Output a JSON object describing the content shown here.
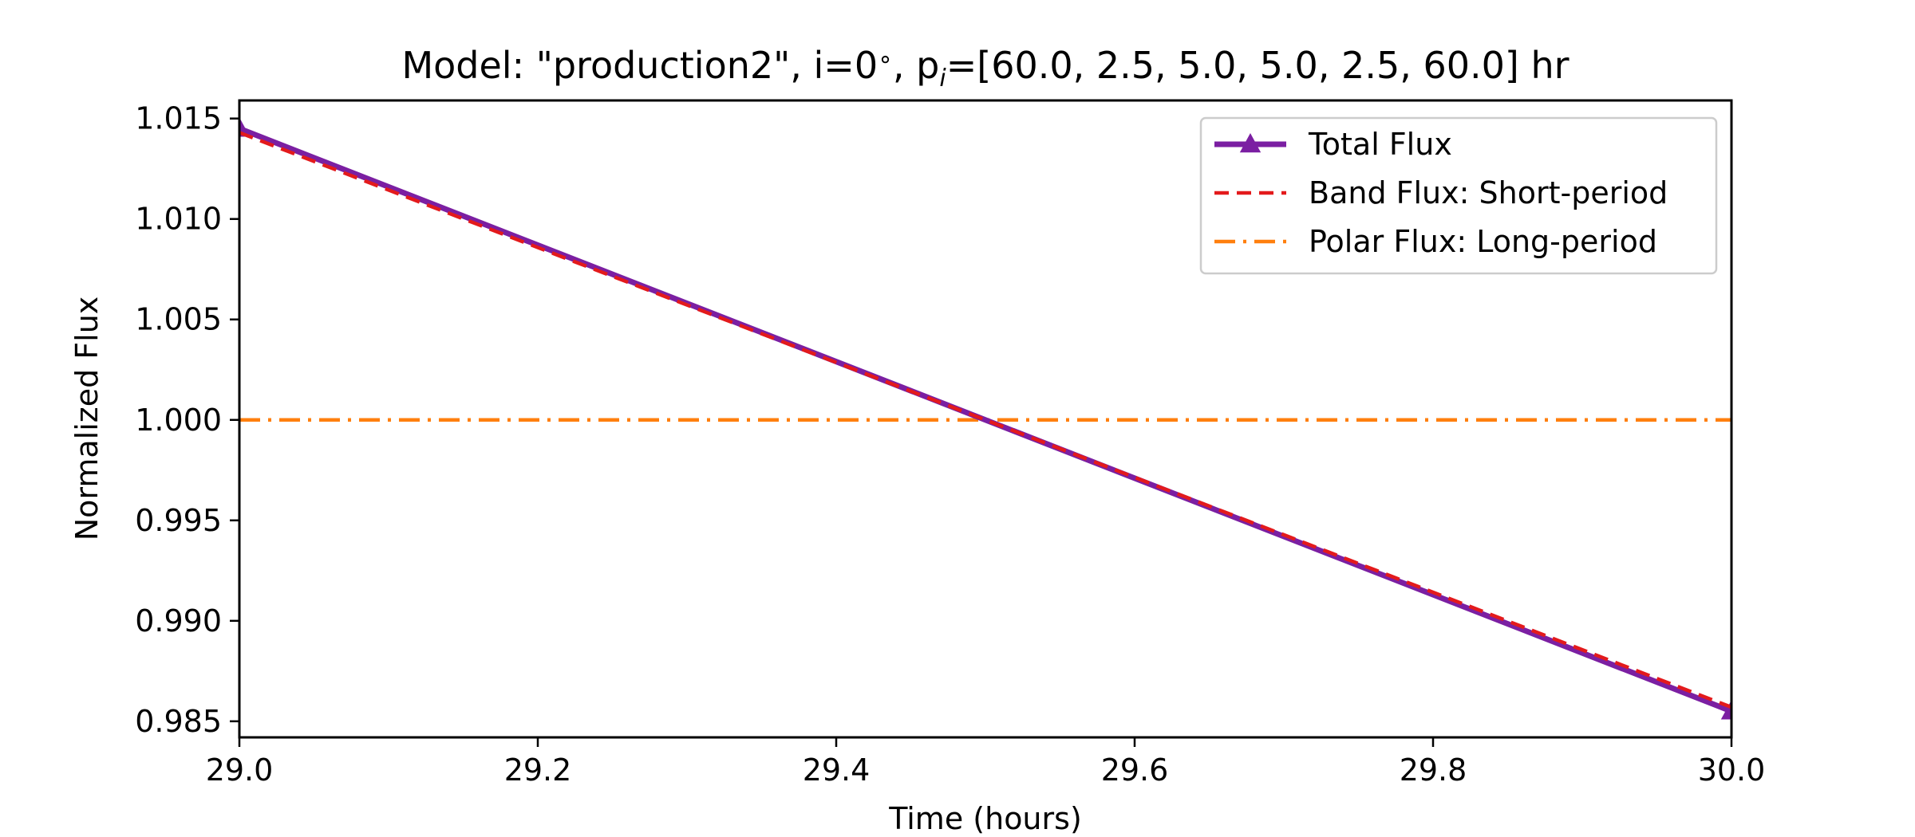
{
  "chart_data": {
    "type": "line",
    "title_prefix": "Model: \"production2\", i=0",
    "title_degree": "∘",
    "title_mid": ", p",
    "title_sub": "i",
    "title_suffix": "=[60.0, 2.5, 5.0, 5.0, 2.5, 60.0] hr",
    "xlabel": "Time (hours)",
    "ylabel": "Normalized Flux",
    "xlim": [
      29.0,
      30.0
    ],
    "ylim": [
      0.9842,
      1.0159
    ],
    "xticks": [
      29.0,
      29.2,
      29.4,
      29.6,
      29.8,
      30.0
    ],
    "xtick_labels": [
      "29.0",
      "29.2",
      "29.4",
      "29.6",
      "29.8",
      "30.0"
    ],
    "yticks": [
      0.985,
      0.99,
      0.995,
      1.0,
      1.005,
      1.01,
      1.015
    ],
    "ytick_labels": [
      "0.985",
      "0.990",
      "0.995",
      "1.000",
      "1.005",
      "1.010",
      "1.015"
    ],
    "grid": false,
    "legend_position": "top-right",
    "series": [
      {
        "name": "Total Flux",
        "color": "#7b1fa2",
        "style": "solid",
        "marker": "triangle",
        "x": [
          29.0,
          30.0
        ],
        "y": [
          1.0145,
          0.9855
        ]
      },
      {
        "name": "Band Flux: Short-period",
        "color": "#e31a1c",
        "style": "dashed",
        "marker": "none",
        "x": [
          29.0,
          30.0
        ],
        "y": [
          1.0143,
          0.9857
        ]
      },
      {
        "name": "Polar Flux: Long-period",
        "color": "#ff7f0e",
        "style": "dashdot",
        "marker": "none",
        "x": [
          29.0,
          30.0
        ],
        "y": [
          1.0,
          1.0
        ]
      }
    ]
  }
}
